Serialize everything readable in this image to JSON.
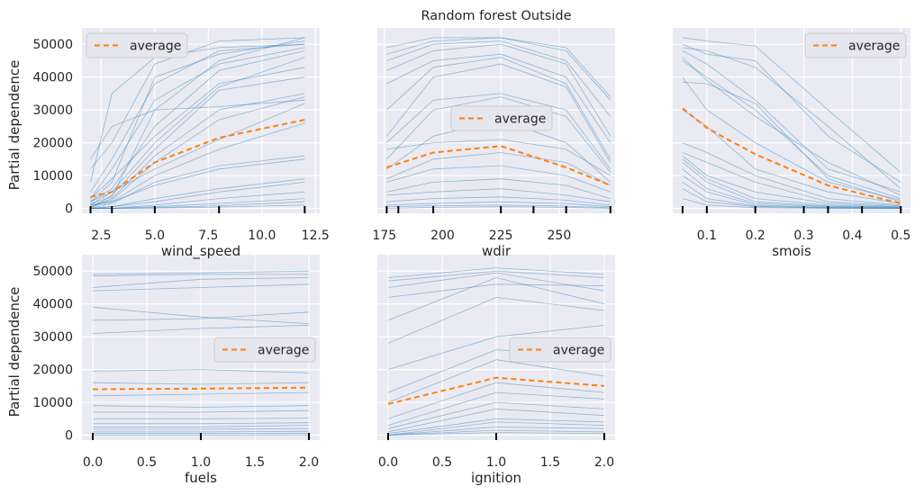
{
  "colors": {
    "panel_bg": "#eaeaf2",
    "grid": "#ffffff",
    "ice": "#1f77b4",
    "average": "#ff7f0e",
    "rug": "#000000",
    "legend_bg": "#e6e6ee",
    "legend_border": "#cccccc"
  },
  "chart_data": [
    {
      "type": "line",
      "feature": "wind_speed",
      "xlabel": "wind_speed",
      "ylabel": "Partial dependence",
      "title": "",
      "xlim": [
        1.6,
        12.7
      ],
      "ylim": [
        -1500,
        55000
      ],
      "xticks": [
        2.5,
        5.0,
        7.5,
        10.0,
        12.5
      ],
      "xtick_labels": [
        "2.5",
        "5.0",
        "7.5",
        "10.0",
        "12.5"
      ],
      "yticks": [
        0,
        10000,
        20000,
        30000,
        40000,
        50000
      ],
      "ytick_labels": [
        "0",
        "10000",
        "20000",
        "30000",
        "40000",
        "50000"
      ],
      "grid": true,
      "legend": {
        "label": "average",
        "position": "top-left"
      },
      "x": [
        2,
        3,
        5,
        8,
        12
      ],
      "average": [
        3500,
        5000,
        14000,
        21500,
        27000
      ],
      "rug": [
        2,
        3,
        5,
        8,
        12
      ],
      "ice": [
        [
          1500,
          3500,
          30000,
          45000,
          52000
        ],
        [
          2000,
          8000,
          40000,
          47000,
          51000
        ],
        [
          5000,
          15000,
          38000,
          48000,
          50000
        ],
        [
          12000,
          20000,
          44000,
          51000,
          52000
        ],
        [
          8000,
          35000,
          46000,
          49000,
          50000
        ],
        [
          3000,
          12000,
          33000,
          44000,
          49000
        ],
        [
          2000,
          6000,
          25000,
          42000,
          48000
        ],
        [
          1000,
          5000,
          20000,
          37000,
          46000
        ],
        [
          3000,
          9000,
          22000,
          38000,
          43000
        ],
        [
          0,
          4000,
          18000,
          36000,
          40000
        ],
        [
          500,
          3000,
          16000,
          30000,
          35000
        ],
        [
          1000,
          2500,
          14000,
          27000,
          34000
        ],
        [
          15000,
          25000,
          30000,
          31000,
          33000
        ],
        [
          2000,
          5000,
          12000,
          21000,
          32000
        ],
        [
          500,
          2000,
          10000,
          18000,
          26000
        ],
        [
          0,
          1500,
          8000,
          13000,
          16000
        ],
        [
          1000,
          2000,
          7000,
          12000,
          15000
        ],
        [
          0,
          500,
          3000,
          6000,
          9000
        ],
        [
          0,
          500,
          2000,
          5000,
          8000
        ],
        [
          0,
          0,
          1000,
          3000,
          5000
        ],
        [
          0,
          0,
          500,
          1500,
          3000
        ],
        [
          0,
          0,
          200,
          800,
          2000
        ],
        [
          0,
          0,
          100,
          400,
          1000
        ]
      ]
    },
    {
      "type": "line",
      "feature": "wdir",
      "xlabel": "wdir",
      "ylabel": "",
      "title": "Random forest Outside",
      "xlim": [
        172,
        274
      ],
      "ylim": [
        -1500,
        55000
      ],
      "xticks": [
        175,
        200,
        225,
        250
      ],
      "xtick_labels": [
        "175",
        "200",
        "225",
        "250"
      ],
      "yticks": [
        0,
        10000,
        20000,
        30000,
        40000,
        50000
      ],
      "ytick_labels": [],
      "grid": true,
      "legend": {
        "label": "average",
        "position": "center"
      },
      "x": [
        176,
        196,
        225,
        253,
        272
      ],
      "average": [
        12500,
        17000,
        19000,
        12500,
        7000
      ],
      "rug": [
        176,
        181,
        196,
        225,
        239,
        253,
        272
      ],
      "ice": [
        [
          49000,
          52000,
          52000,
          48000,
          33000
        ],
        [
          47000,
          51000,
          52000,
          49000,
          34000
        ],
        [
          45000,
          50000,
          51000,
          45000,
          28000
        ],
        [
          42000,
          48000,
          50000,
          44000,
          22000
        ],
        [
          38000,
          45000,
          47000,
          40000,
          20000
        ],
        [
          30000,
          43000,
          46000,
          38000,
          15000
        ],
        [
          22000,
          40000,
          44000,
          37000,
          14000
        ],
        [
          20000,
          33000,
          35000,
          30000,
          12000
        ],
        [
          15000,
          30000,
          34000,
          28000,
          11000
        ],
        [
          12000,
          22000,
          27000,
          20000,
          8000
        ],
        [
          18000,
          20000,
          21000,
          18000,
          10000
        ],
        [
          9000,
          15000,
          17000,
          14000,
          7000
        ],
        [
          8000,
          12000,
          13000,
          10000,
          5000
        ],
        [
          5000,
          8000,
          9000,
          7000,
          3000
        ],
        [
          4000,
          5000,
          6000,
          4000,
          2000
        ],
        [
          2000,
          3000,
          3500,
          2500,
          1000
        ],
        [
          1000,
          1500,
          2000,
          1500,
          500
        ],
        [
          500,
          800,
          1000,
          700,
          200
        ],
        [
          0,
          300,
          500,
          300,
          0
        ]
      ]
    },
    {
      "type": "line",
      "feature": "smois",
      "xlabel": "smois",
      "ylabel": "",
      "title": "",
      "xlim": [
        0.0297,
        0.52
      ],
      "ylim": [
        -1500,
        55000
      ],
      "xticks": [
        0.1,
        0.2,
        0.3,
        0.4,
        0.5
      ],
      "xtick_labels": [
        "0.1",
        "0.2",
        "0.3",
        "0.4",
        "0.5"
      ],
      "yticks": [
        0,
        10000,
        20000,
        30000,
        40000,
        50000
      ],
      "ytick_labels": [],
      "grid": true,
      "legend": {
        "label": "average",
        "position": "top-right"
      },
      "x": [
        0.05,
        0.1,
        0.2,
        0.35,
        0.5
      ],
      "average": [
        30500,
        24500,
        16500,
        7000,
        1500
      ],
      "rug": [
        0.05,
        0.1,
        0.2,
        0.3,
        0.35,
        0.42,
        0.5
      ],
      "ice": [
        [
          52000,
          51000,
          49500,
          30000,
          11000
        ],
        [
          50000,
          47000,
          45000,
          22000,
          8000
        ],
        [
          49000,
          48000,
          43000,
          25000,
          6000
        ],
        [
          48000,
          44000,
          33000,
          12000,
          5000
        ],
        [
          46000,
          39000,
          28000,
          14000,
          4000
        ],
        [
          45000,
          40000,
          30000,
          10000,
          3000
        ],
        [
          38500,
          38000,
          32000,
          9000,
          2000
        ],
        [
          40000,
          30000,
          20000,
          8000,
          2500
        ],
        [
          30000,
          25000,
          12000,
          5000,
          1500
        ],
        [
          20000,
          17000,
          10000,
          3000,
          1000
        ],
        [
          17000,
          14000,
          8000,
          2000,
          800
        ],
        [
          16000,
          10000,
          5000,
          1500,
          500
        ],
        [
          15000,
          9000,
          3000,
          1000,
          400
        ],
        [
          14000,
          8000,
          2000,
          700,
          300
        ],
        [
          12000,
          6000,
          1500,
          500,
          200
        ],
        [
          10000,
          5000,
          1000,
          300,
          100
        ],
        [
          8000,
          3000,
          700,
          200,
          0
        ],
        [
          6000,
          2000,
          500,
          100,
          0
        ],
        [
          3000,
          1000,
          200,
          0,
          0
        ]
      ]
    },
    {
      "type": "line",
      "feature": "fuels",
      "xlabel": "fuels",
      "ylabel": "Partial dependence",
      "title": "",
      "xlim": [
        -0.1,
        2.1
      ],
      "ylim": [
        -1500,
        55000
      ],
      "xticks": [
        0.0,
        0.5,
        1.0,
        1.5,
        2.0
      ],
      "xtick_labels": [
        "0.0",
        "0.5",
        "1.0",
        "1.5",
        "2.0"
      ],
      "yticks": [
        0,
        10000,
        20000,
        30000,
        40000,
        50000
      ],
      "ytick_labels": [
        "0",
        "10000",
        "20000",
        "30000",
        "40000",
        "50000"
      ],
      "grid": true,
      "legend": {
        "label": "average",
        "position": "center-right"
      },
      "x": [
        0,
        1,
        2
      ],
      "average": [
        14000,
        14200,
        14500
      ],
      "rug": [
        0,
        1,
        2
      ],
      "ice": [
        [
          49000,
          49500,
          50000
        ],
        [
          48500,
          49000,
          49000
        ],
        [
          45000,
          47500,
          48000
        ],
        [
          44000,
          45000,
          46000
        ],
        [
          39000,
          36000,
          34000
        ],
        [
          35000,
          35500,
          37500
        ],
        [
          31000,
          32500,
          33500
        ],
        [
          19500,
          20000,
          19000
        ],
        [
          16000,
          15500,
          16000
        ],
        [
          12000,
          12500,
          13000
        ],
        [
          9000,
          8500,
          9000
        ],
        [
          7000,
          7000,
          7500
        ],
        [
          5000,
          5000,
          5200
        ],
        [
          3500,
          3500,
          3800
        ],
        [
          2500,
          2500,
          3000
        ],
        [
          1800,
          1800,
          2000
        ],
        [
          1000,
          1000,
          1200
        ],
        [
          500,
          500,
          600
        ],
        [
          0,
          0,
          100
        ]
      ]
    },
    {
      "type": "line",
      "feature": "ignition",
      "xlabel": "ignition",
      "ylabel": "",
      "title": "",
      "xlim": [
        -0.1,
        2.1
      ],
      "ylim": [
        -1500,
        55000
      ],
      "xticks": [
        0.0,
        0.5,
        1.0,
        1.5,
        2.0
      ],
      "xtick_labels": [
        "0.0",
        "0.5",
        "1.0",
        "1.5",
        "2.0"
      ],
      "yticks": [
        0,
        10000,
        20000,
        30000,
        40000,
        50000
      ],
      "ytick_labels": [],
      "grid": true,
      "legend": {
        "label": "average",
        "position": "center-right"
      },
      "x": [
        0,
        1,
        2
      ],
      "average": [
        9500,
        17500,
        15000
      ],
      "rug": [
        0,
        1,
        2
      ],
      "ice": [
        [
          48000,
          51000,
          49000
        ],
        [
          47000,
          50000,
          48000
        ],
        [
          45000,
          49500,
          44000
        ],
        [
          42000,
          46000,
          45500
        ],
        [
          35000,
          48000,
          40000
        ],
        [
          28000,
          42000,
          38000
        ],
        [
          20000,
          30000,
          33500
        ],
        [
          13000,
          26000,
          24000
        ],
        [
          10000,
          23000,
          18000
        ],
        [
          5000,
          16000,
          13000
        ],
        [
          3000,
          13000,
          11000
        ],
        [
          2000,
          10000,
          8000
        ],
        [
          1000,
          8000,
          6000
        ],
        [
          500,
          5000,
          4000
        ],
        [
          0,
          4000,
          3000
        ],
        [
          0,
          2500,
          2000
        ],
        [
          0,
          1500,
          1000
        ],
        [
          0,
          800,
          500
        ]
      ]
    }
  ]
}
